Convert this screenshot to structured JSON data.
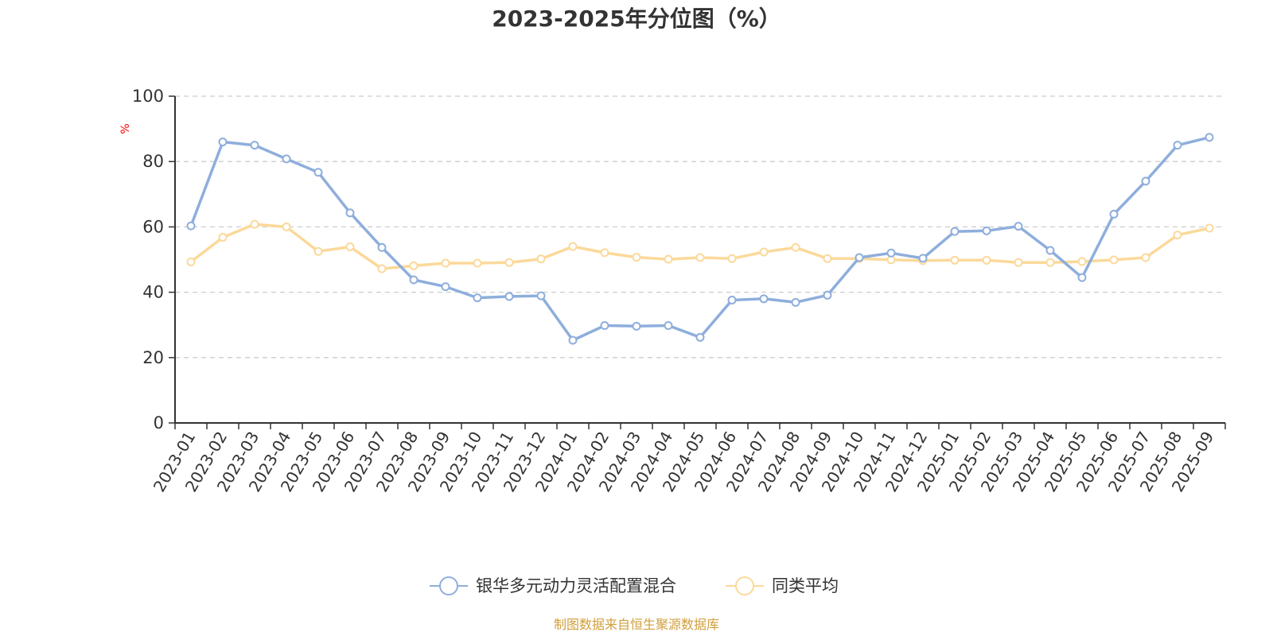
{
  "chart_data": {
    "type": "line",
    "title": "2023-2025年分位图（%）",
    "ylabel": "%",
    "ylim": [
      0,
      100
    ],
    "yticks": [
      "0",
      "20",
      "40",
      "60",
      "80",
      "100"
    ],
    "grid": true,
    "legend_position": "bottom",
    "categories": [
      "2023-01",
      "2023-02",
      "2023-03",
      "2023-04",
      "2023-05",
      "2023-06",
      "2023-07",
      "2023-08",
      "2023-09",
      "2023-10",
      "2023-11",
      "2023-12",
      "2024-01",
      "2024-02",
      "2024-03",
      "2024-04",
      "2024-05",
      "2024-06",
      "2024-07",
      "2024-08",
      "2024-09",
      "2024-10",
      "2024-11",
      "2024-12",
      "2025-01",
      "2025-02",
      "2025-03",
      "2025-04",
      "2025-05",
      "2025-06",
      "2025-07",
      "2025-08",
      "2025-09"
    ],
    "series": [
      {
        "name": "银华多元动力灵活配置混合",
        "color": "#8eaedc",
        "values": [
          60.3,
          86.0,
          85.0,
          80.8,
          76.7,
          64.3,
          53.7,
          43.8,
          41.7,
          38.3,
          38.7,
          38.9,
          25.3,
          29.8,
          29.6,
          29.8,
          26.2,
          37.6,
          38.0,
          36.9,
          39.1,
          50.6,
          52.0,
          50.4,
          58.6,
          58.8,
          60.2,
          52.8,
          44.5,
          63.9,
          74.0,
          85.0,
          87.4
        ]
      },
      {
        "name": "同类平均",
        "color": "#fbd99a",
        "values": [
          49.3,
          56.8,
          60.8,
          60.0,
          52.5,
          53.9,
          47.2,
          48.1,
          48.9,
          48.9,
          49.1,
          50.2,
          54.0,
          52.1,
          50.7,
          50.1,
          50.6,
          50.3,
          52.3,
          53.7,
          50.3,
          50.3,
          49.9,
          49.7,
          49.8,
          49.8,
          49.1,
          49.1,
          49.4,
          49.9,
          50.6,
          57.5,
          59.6
        ]
      }
    ]
  },
  "colors": {
    "unit_label": "#ff0000",
    "source": "#d19f3c",
    "grid": "#cccccc",
    "axis": "#333333"
  },
  "source_text": "制图数据来自恒生聚源数据库"
}
